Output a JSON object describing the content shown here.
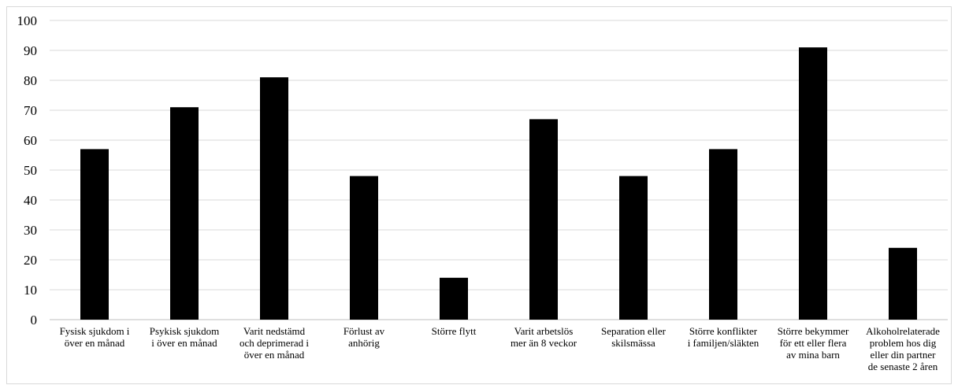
{
  "chart_data": {
    "type": "bar",
    "title": "",
    "xlabel": "",
    "ylabel": "",
    "ylim": [
      0,
      100
    ],
    "yticks": [
      0,
      10,
      20,
      30,
      40,
      50,
      60,
      70,
      80,
      90,
      100
    ],
    "grid": true,
    "legend": "none",
    "bar_color": "#000000",
    "categories": [
      [
        "Fysisk sjukdom i",
        "över en månad"
      ],
      [
        "Psykisk sjukdom",
        "i över en månad"
      ],
      [
        "Varit nedstämd",
        "och deprimerad i",
        "över en månad"
      ],
      [
        "Förlust av",
        "anhörig"
      ],
      [
        "Större flytt"
      ],
      [
        "Varit arbetslös",
        "mer än 8 veckor"
      ],
      [
        "Separation eller",
        "skilsmässa"
      ],
      [
        "Större konflikter",
        "i familjen/släkten"
      ],
      [
        "Större bekymmer",
        "för ett eller flera",
        "av mina barn"
      ],
      [
        "Alkoholrelaterade",
        "problem hos dig",
        "eller din partner",
        "de senaste 2 åren"
      ]
    ],
    "values": [
      57,
      71,
      81,
      48,
      14,
      67,
      48,
      57,
      91,
      24
    ]
  }
}
